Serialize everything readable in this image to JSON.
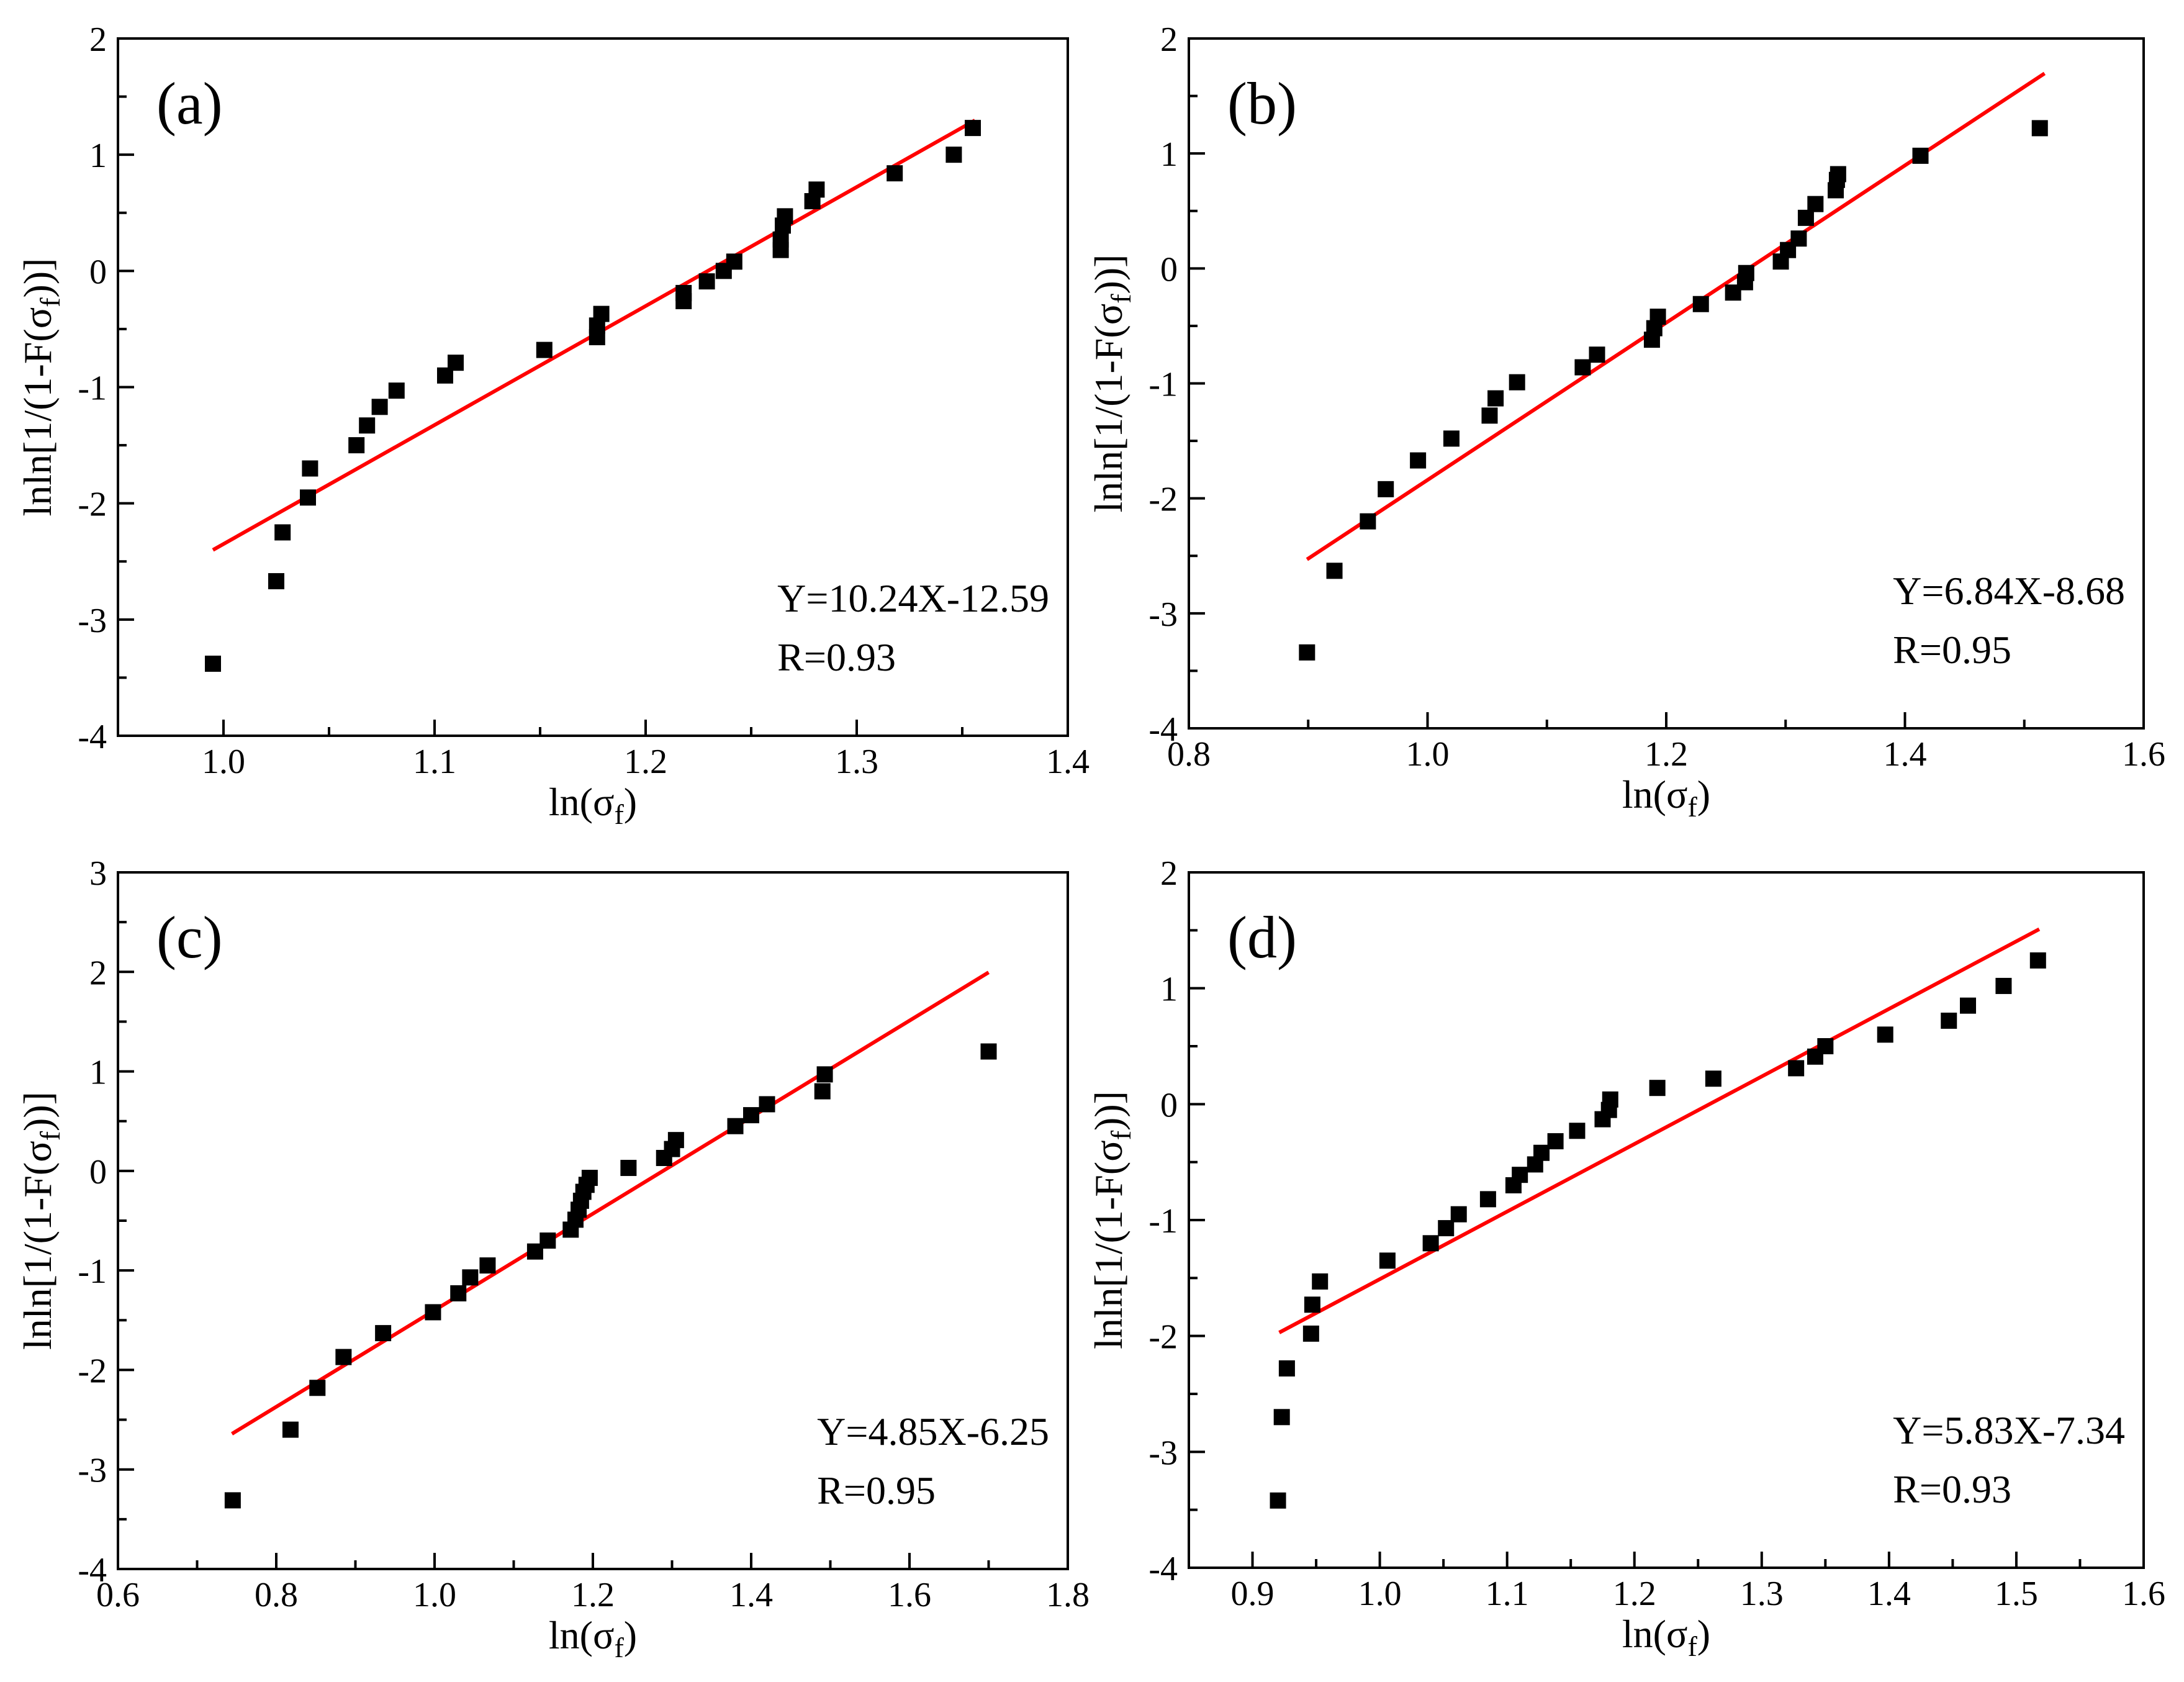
{
  "chart_data": [
    {
      "type": "scatter",
      "panel_label": "(a)",
      "xlabel": "ln(σ",
      "xlabel_sub": "f",
      "xlabel_end": ")",
      "ylabel": "lnln[1/(1-F(σ",
      "ylabel_sub": "f",
      "ylabel_end": "))]",
      "xlim": [
        0.95,
        1.4
      ],
      "ylim": [
        -4,
        2
      ],
      "xticks": [
        1.0,
        1.1,
        1.2,
        1.3,
        1.4
      ],
      "xtick_labels": [
        "1.0",
        "1.1",
        "1.2",
        "1.3",
        "1.4"
      ],
      "yticks": [
        -4,
        -3,
        -2,
        -1,
        0,
        1,
        2
      ],
      "ytick_labels": [
        "-4",
        "-3",
        "-2",
        "-1",
        "0",
        "1",
        "2"
      ],
      "fit": {
        "slope": 10.24,
        "intercept": -12.59,
        "x_range": [
          0.995,
          1.356
        ],
        "color": "#ff0000"
      },
      "equation": "Y=10.24X-12.59",
      "r_text": "R=0.93",
      "annotation_position": "bottom-right",
      "points": [
        [
          0.995,
          -3.38
        ],
        [
          1.025,
          -2.67
        ],
        [
          1.028,
          -2.25
        ],
        [
          1.04,
          -1.95
        ],
        [
          1.041,
          -1.7
        ],
        [
          1.063,
          -1.5
        ],
        [
          1.068,
          -1.33
        ],
        [
          1.074,
          -1.17
        ],
        [
          1.082,
          -1.03
        ],
        [
          1.105,
          -0.9
        ],
        [
          1.11,
          -0.79
        ],
        [
          1.152,
          -0.68
        ],
        [
          1.177,
          -0.57
        ],
        [
          1.177,
          -0.47
        ],
        [
          1.179,
          -0.37
        ],
        [
          1.218,
          -0.26
        ],
        [
          1.218,
          -0.19
        ],
        [
          1.229,
          -0.09
        ],
        [
          1.237,
          0.0
        ],
        [
          1.242,
          0.08
        ],
        [
          1.264,
          0.18
        ],
        [
          1.264,
          0.27
        ],
        [
          1.265,
          0.39
        ],
        [
          1.266,
          0.47
        ],
        [
          1.279,
          0.6
        ],
        [
          1.281,
          0.7
        ],
        [
          1.318,
          0.84
        ],
        [
          1.346,
          1.0
        ],
        [
          1.355,
          1.23
        ]
      ]
    },
    {
      "type": "scatter",
      "panel_label": "(b)",
      "xlabel": "ln(σ",
      "xlabel_sub": "f",
      "xlabel_end": ")",
      "ylabel": "lnln[1/(1-F(σ",
      "ylabel_sub": "f",
      "ylabel_end": "))]",
      "xlim": [
        0.8,
        1.6
      ],
      "ylim": [
        -4,
        2
      ],
      "xticks": [
        0.8,
        1.0,
        1.2,
        1.4,
        1.6
      ],
      "xtick_labels": [
        "0.8",
        "1.0",
        "1.2",
        "1.4",
        "1.6"
      ],
      "yticks": [
        -4,
        -3,
        -2,
        -1,
        0,
        1,
        2
      ],
      "ytick_labels": [
        "-4",
        "-3",
        "-2",
        "-1",
        "0",
        "1",
        "2"
      ],
      "fit": {
        "slope": 6.84,
        "intercept": -8.68,
        "x_range": [
          0.899,
          1.517
        ],
        "color": "#ff0000"
      },
      "equation": "Y=6.84X-8.68",
      "r_text": "R=0.95",
      "annotation_position": "bottom-right",
      "points": [
        [
          0.899,
          -3.34
        ],
        [
          0.922,
          -2.63
        ],
        [
          0.95,
          -2.2
        ],
        [
          0.965,
          -1.92
        ],
        [
          0.992,
          -1.67
        ],
        [
          1.02,
          -1.48
        ],
        [
          1.052,
          -1.28
        ],
        [
          1.057,
          -1.13
        ],
        [
          1.075,
          -0.99
        ],
        [
          1.13,
          -0.86
        ],
        [
          1.142,
          -0.75
        ],
        [
          1.188,
          -0.62
        ],
        [
          1.19,
          -0.52
        ],
        [
          1.193,
          -0.42
        ],
        [
          1.229,
          -0.31
        ],
        [
          1.256,
          -0.21
        ],
        [
          1.266,
          -0.12
        ],
        [
          1.267,
          -0.04
        ],
        [
          1.296,
          0.06
        ],
        [
          1.302,
          0.16
        ],
        [
          1.311,
          0.26
        ],
        [
          1.317,
          0.44
        ],
        [
          1.325,
          0.56
        ],
        [
          1.342,
          0.68
        ],
        [
          1.343,
          0.77
        ],
        [
          1.344,
          0.82
        ],
        [
          1.413,
          0.98
        ],
        [
          1.513,
          1.22
        ]
      ]
    },
    {
      "type": "scatter",
      "panel_label": "(c)",
      "xlabel": "ln(σ",
      "xlabel_sub": "f",
      "xlabel_end": ")",
      "ylabel": "lnln[1/(1-F(σ",
      "ylabel_sub": "f",
      "ylabel_end": "))]",
      "xlim": [
        0.6,
        1.8
      ],
      "ylim": [
        -4,
        3
      ],
      "xticks": [
        0.6,
        0.8,
        1.0,
        1.2,
        1.4,
        1.6,
        1.8
      ],
      "xtick_labels": [
        "0.6",
        "0.8",
        "1.0",
        "1.2",
        "1.4",
        "1.6",
        "1.8"
      ],
      "yticks": [
        -4,
        -3,
        -2,
        -1,
        0,
        1,
        2,
        3
      ],
      "ytick_labels": [
        "-4",
        "-3",
        "-2",
        "-1",
        "0",
        "1",
        "2",
        "3"
      ],
      "fit": {
        "slope": 4.85,
        "intercept": -6.25,
        "x_range": [
          0.744,
          1.7
        ],
        "color": "#ff0000"
      },
      "equation": "Y=4.85X-6.25",
      "r_text": "R=0.95",
      "annotation_position": "bottom-right",
      "points": [
        [
          0.745,
          -3.31
        ],
        [
          0.818,
          -2.6
        ],
        [
          0.852,
          -2.18
        ],
        [
          0.885,
          -1.87
        ],
        [
          0.935,
          -1.63
        ],
        [
          0.998,
          -1.42
        ],
        [
          1.03,
          -1.23
        ],
        [
          1.045,
          -1.07
        ],
        [
          1.067,
          -0.95
        ],
        [
          1.127,
          -0.81
        ],
        [
          1.143,
          -0.7
        ],
        [
          1.172,
          -0.59
        ],
        [
          1.178,
          -0.49
        ],
        [
          1.182,
          -0.39
        ],
        [
          1.185,
          -0.3
        ],
        [
          1.188,
          -0.21
        ],
        [
          1.192,
          -0.14
        ],
        [
          1.196,
          -0.07
        ],
        [
          1.245,
          0.03
        ],
        [
          1.29,
          0.13
        ],
        [
          1.3,
          0.22
        ],
        [
          1.305,
          0.31
        ],
        [
          1.38,
          0.45
        ],
        [
          1.4,
          0.56
        ],
        [
          1.42,
          0.67
        ],
        [
          1.49,
          0.8
        ],
        [
          1.493,
          0.97
        ],
        [
          1.7,
          1.2
        ]
      ]
    },
    {
      "type": "scatter",
      "panel_label": "(d)",
      "xlabel": "ln(σ",
      "xlabel_sub": "f",
      "xlabel_end": ")",
      "ylabel": "lnln[1/(1-F(σ",
      "ylabel_sub": "f",
      "ylabel_end": "))]",
      "xlim": [
        0.85,
        1.6
      ],
      "ylim": [
        -4,
        2
      ],
      "xticks": [
        0.9,
        1.0,
        1.1,
        1.2,
        1.3,
        1.4,
        1.5,
        1.6
      ],
      "xtick_labels": [
        "0.9",
        "1.0",
        "1.1",
        "1.2",
        "1.3",
        "1.4",
        "1.5",
        "1.6"
      ],
      "yticks": [
        -4,
        -3,
        -2,
        -1,
        0,
        1,
        2
      ],
      "ytick_labels": [
        "-4",
        "-3",
        "-2",
        "-1",
        "0",
        "1",
        "2"
      ],
      "fit": {
        "slope": 5.83,
        "intercept": -7.34,
        "x_range": [
          0.921,
          1.518
        ],
        "color": "#ff0000"
      },
      "equation": "Y=5.83X-7.34",
      "r_text": "R=0.93",
      "annotation_position": "bottom-right",
      "points": [
        [
          0.92,
          -3.42
        ],
        [
          0.923,
          -2.7
        ],
        [
          0.927,
          -2.28
        ],
        [
          0.946,
          -1.98
        ],
        [
          0.947,
          -1.73
        ],
        [
          0.953,
          -1.53
        ],
        [
          1.006,
          -1.35
        ],
        [
          1.04,
          -1.2
        ],
        [
          1.052,
          -1.07
        ],
        [
          1.062,
          -0.95
        ],
        [
          1.085,
          -0.82
        ],
        [
          1.105,
          -0.7
        ],
        [
          1.11,
          -0.61
        ],
        [
          1.122,
          -0.52
        ],
        [
          1.127,
          -0.42
        ],
        [
          1.138,
          -0.32
        ],
        [
          1.155,
          -0.23
        ],
        [
          1.175,
          -0.13
        ],
        [
          1.18,
          -0.05
        ],
        [
          1.181,
          0.04
        ],
        [
          1.218,
          0.14
        ],
        [
          1.262,
          0.22
        ],
        [
          1.327,
          0.31
        ],
        [
          1.342,
          0.41
        ],
        [
          1.35,
          0.5
        ],
        [
          1.397,
          0.6
        ],
        [
          1.447,
          0.72
        ],
        [
          1.462,
          0.85
        ],
        [
          1.49,
          1.02
        ],
        [
          1.517,
          1.24
        ]
      ]
    }
  ]
}
